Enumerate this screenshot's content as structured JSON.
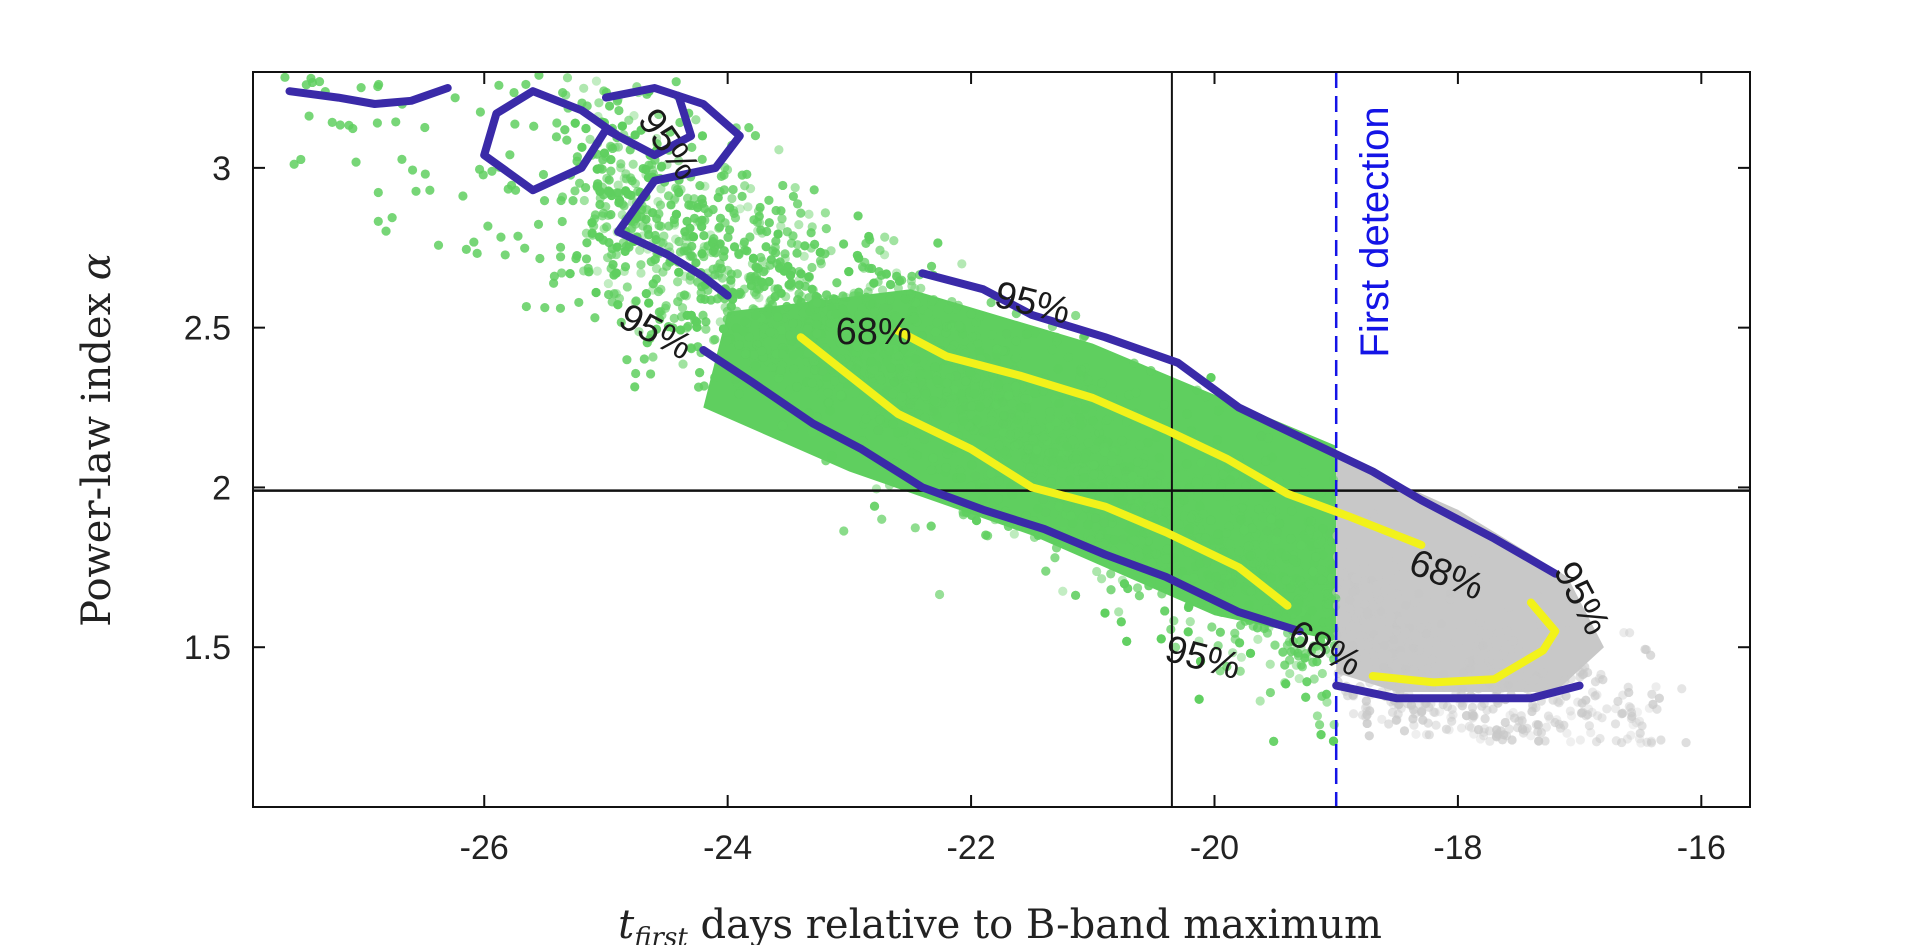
{
  "chart_data": {
    "type": "scatter",
    "title": "",
    "xlabel": {
      "italic": "t",
      "sub": "first",
      "rest": " days relative to B-band maximum"
    },
    "ylabel": {
      "text": "Power-law index ",
      "symbol": "α"
    },
    "xlim": [
      -27.9,
      -15.6
    ],
    "ylim": [
      1.0,
      3.3
    ],
    "xticks": [
      -26,
      -24,
      -22,
      -20,
      -18,
      -16
    ],
    "yticks": [
      1.5,
      2,
      2.5,
      3
    ],
    "xtick_labels": [
      "-26",
      "-24",
      "-22",
      "-20",
      "-18",
      "-16"
    ],
    "ytick_labels": [
      "1.5",
      "2",
      "2.5",
      "3"
    ],
    "reference_lines": {
      "vertical_x": -20.35,
      "horizontal_y": 1.99
    },
    "first_detection": {
      "x": -19.0,
      "label": "First detection",
      "color": "#1414e6"
    },
    "colors": {
      "green": "#5fcf5f",
      "gray": "#c8c8c8",
      "contour95": "#3a2aa8",
      "contour68": "#f2f21a"
    },
    "series": [
      {
        "name": "95% contour (lower)",
        "level": "95%",
        "points": [
          [
            -24.2,
            2.43
          ],
          [
            -23.8,
            2.33
          ],
          [
            -23.3,
            2.2
          ],
          [
            -22.9,
            2.12
          ],
          [
            -22.4,
            2.0
          ],
          [
            -21.9,
            1.93
          ],
          [
            -21.4,
            1.87
          ],
          [
            -20.9,
            1.79
          ],
          [
            -20.4,
            1.72
          ],
          [
            -19.8,
            1.61
          ],
          [
            -19.3,
            1.55
          ]
        ]
      },
      {
        "name": "95% contour (upper)",
        "level": "95%",
        "points": [
          [
            -22.4,
            2.67
          ],
          [
            -21.9,
            2.62
          ],
          [
            -21.5,
            2.54
          ],
          [
            -20.9,
            2.47
          ],
          [
            -20.3,
            2.39
          ],
          [
            -19.8,
            2.25
          ],
          [
            -19.2,
            2.14
          ],
          [
            -18.7,
            2.05
          ],
          [
            -18.3,
            1.96
          ],
          [
            -17.7,
            1.84
          ],
          [
            -17.2,
            1.73
          ]
        ]
      },
      {
        "name": "95% contour (tail)",
        "level": "95%",
        "points": [
          [
            -19.0,
            1.38
          ],
          [
            -18.5,
            1.34
          ],
          [
            -17.9,
            1.34
          ],
          [
            -17.4,
            1.34
          ],
          [
            -17.0,
            1.38
          ]
        ]
      },
      {
        "name": "95% contour (top-left)",
        "level": "95%",
        "points": [
          [
            -27.6,
            3.24
          ],
          [
            -27.2,
            3.22
          ],
          [
            -26.9,
            3.2
          ],
          [
            -26.6,
            3.21
          ],
          [
            -26.3,
            3.25
          ]
        ]
      },
      {
        "name": "95% contour (top-left loop)",
        "level": "95%",
        "points": [
          [
            -24.4,
            3.22
          ],
          [
            -24.3,
            3.1
          ],
          [
            -24.6,
            3.04
          ],
          [
            -25.0,
            3.12
          ],
          [
            -25.2,
            3.0
          ],
          [
            -25.6,
            2.93
          ],
          [
            -26.0,
            3.04
          ],
          [
            -25.9,
            3.17
          ],
          [
            -25.6,
            3.24
          ],
          [
            -25.2,
            3.18
          ],
          [
            -24.9,
            3.1
          ],
          [
            -24.6,
            3.04
          ]
        ]
      },
      {
        "name": "95% contour (top-middle)",
        "level": "95%",
        "points": [
          [
            -25.0,
            3.22
          ],
          [
            -24.6,
            3.25
          ],
          [
            -24.2,
            3.2
          ],
          [
            -23.9,
            3.1
          ],
          [
            -24.1,
            3.0
          ],
          [
            -24.6,
            2.96
          ],
          [
            -24.9,
            2.8
          ],
          [
            -24.5,
            2.73
          ],
          [
            -24.2,
            2.66
          ],
          [
            -24.0,
            2.6
          ]
        ]
      },
      {
        "name": "68% contour (lower)",
        "level": "68%",
        "points": [
          [
            -23.4,
            2.47
          ],
          [
            -23.0,
            2.35
          ],
          [
            -22.6,
            2.23
          ],
          [
            -22.0,
            2.12
          ],
          [
            -21.5,
            2.0
          ],
          [
            -20.9,
            1.94
          ],
          [
            -20.4,
            1.86
          ],
          [
            -19.8,
            1.75
          ],
          [
            -19.4,
            1.63
          ]
        ]
      },
      {
        "name": "68% contour (upper)",
        "level": "68%",
        "points": [
          [
            -22.6,
            2.49
          ],
          [
            -22.2,
            2.41
          ],
          [
            -21.6,
            2.35
          ],
          [
            -21.0,
            2.28
          ],
          [
            -20.4,
            2.18
          ],
          [
            -19.9,
            2.09
          ],
          [
            -19.4,
            1.98
          ],
          [
            -18.9,
            1.91
          ],
          [
            -18.3,
            1.82
          ]
        ]
      },
      {
        "name": "68% contour (tail)",
        "level": "68%",
        "points": [
          [
            -18.7,
            1.41
          ],
          [
            -18.2,
            1.39
          ],
          [
            -17.7,
            1.4
          ],
          [
            -17.3,
            1.49
          ],
          [
            -17.2,
            1.55
          ],
          [
            -17.4,
            1.64
          ]
        ]
      }
    ],
    "scatter_summary": {
      "green_region": "dense posterior samples, x from about -27.8 to -19.0, band running from about (-25, 2.9) to (-19.2, 1.6)",
      "gray_region": "posterior samples beyond first detection, x from about -19.0 to -16.5, y from about 1.3 to 2.1"
    },
    "contour_labels": [
      {
        "text": "95%",
        "x": -24.5,
        "y": 3.07,
        "rotate": 55
      },
      {
        "text": "95%",
        "x": -24.6,
        "y": 2.48,
        "rotate": 28
      },
      {
        "text": "95%",
        "x": -21.5,
        "y": 2.57,
        "rotate": 14
      },
      {
        "text": "68%",
        "x": -22.8,
        "y": 2.48,
        "rotate": 0
      },
      {
        "text": "68%",
        "x": -18.1,
        "y": 1.72,
        "rotate": 22
      },
      {
        "text": "95%",
        "x": -17.0,
        "y": 1.65,
        "rotate": 62
      },
      {
        "text": "68%",
        "x": -19.1,
        "y": 1.49,
        "rotate": 28
      },
      {
        "text": "95%",
        "x": -20.1,
        "y": 1.46,
        "rotate": 15
      }
    ]
  }
}
